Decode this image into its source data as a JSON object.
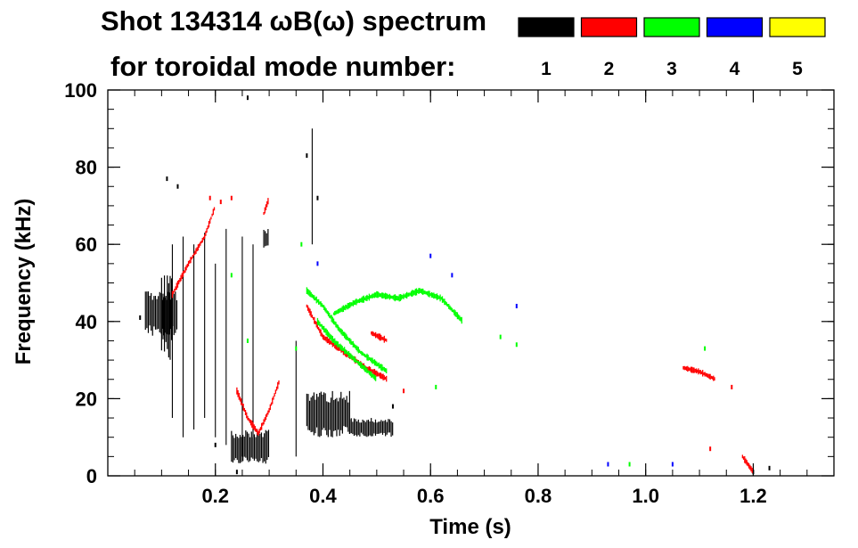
{
  "chart_data": {
    "type": "scatter",
    "title": "Shot 134314 ωB(ω) spectrum",
    "subtitle": "for toroidal mode number:",
    "xlabel": "Time (s)",
    "ylabel": "Frequency (kHz)",
    "xlim": [
      0.0,
      1.35
    ],
    "ylim": [
      0,
      100
    ],
    "x_ticks": [
      {
        "value": 0.2,
        "label": "0.2"
      },
      {
        "value": 0.4,
        "label": "0.4"
      },
      {
        "value": 0.6,
        "label": "0.6"
      },
      {
        "value": 0.8,
        "label": "0.8"
      },
      {
        "value": 1.0,
        "label": "1.0"
      },
      {
        "value": 1.2,
        "label": "1.2"
      }
    ],
    "y_ticks": [
      {
        "value": 0,
        "label": "0"
      },
      {
        "value": 20,
        "label": "20"
      },
      {
        "value": 40,
        "label": "40"
      },
      {
        "value": 60,
        "label": "60"
      },
      {
        "value": 80,
        "label": "80"
      },
      {
        "value": 100,
        "label": "100"
      }
    ],
    "x_minor_step": 0.05,
    "y_minor_step": 5,
    "grid": false,
    "legend_position": "top-right",
    "legend": [
      {
        "label": "1",
        "color": "#000000"
      },
      {
        "label": "2",
        "color": "#ff0000"
      },
      {
        "label": "3",
        "color": "#00ff00"
      },
      {
        "label": "4",
        "color": "#0000ff"
      },
      {
        "label": "5",
        "color": "#ffff00"
      }
    ],
    "series": [
      {
        "mode": "1",
        "color": "#000000",
        "bands": [
          {
            "x": [
              0.07,
              0.13
            ],
            "y": [
              36,
              48
            ],
            "width": 0.5
          },
          {
            "x": [
              0.1,
              0.12
            ],
            "y": [
              30,
              52
            ],
            "width": 0.5
          },
          {
            "x": [
              0.23,
              0.3
            ],
            "y": [
              3,
              12
            ],
            "width": 0.5
          },
          {
            "x": [
              0.29,
              0.3
            ],
            "y": [
              59,
              64
            ],
            "width": 0.2
          },
          {
            "x": [
              0.37,
              0.45
            ],
            "y": [
              10,
              22
            ],
            "width": 0.6
          },
          {
            "x": [
              0.45,
              0.53
            ],
            "y": [
              10,
              15
            ],
            "width": 0.5
          }
        ],
        "stripes": [
          {
            "x": 0.12,
            "y": [
              15,
              60
            ]
          },
          {
            "x": 0.14,
            "y": [
              10,
              62
            ]
          },
          {
            "x": 0.16,
            "y": [
              12,
              60
            ]
          },
          {
            "x": 0.18,
            "y": [
              15,
              63
            ]
          },
          {
            "x": 0.2,
            "y": [
              10,
              55
            ]
          },
          {
            "x": 0.22,
            "y": [
              8,
              64
            ]
          },
          {
            "x": 0.25,
            "y": [
              5,
              62
            ]
          },
          {
            "x": 0.27,
            "y": [
              10,
              60
            ]
          },
          {
            "x": 0.35,
            "y": [
              5,
              35
            ]
          },
          {
            "x": 0.38,
            "y": [
              60,
              90
            ]
          }
        ],
        "points": [
          {
            "x": 0.06,
            "y": 41
          },
          {
            "x": 0.11,
            "y": 77
          },
          {
            "x": 0.13,
            "y": 75
          },
          {
            "x": 0.2,
            "y": 8
          },
          {
            "x": 0.24,
            "y": 1
          },
          {
            "x": 0.26,
            "y": 98
          },
          {
            "x": 0.37,
            "y": 83
          },
          {
            "x": 0.39,
            "y": 72
          },
          {
            "x": 0.53,
            "y": 18
          },
          {
            "x": 1.2,
            "y": 1
          },
          {
            "x": 1.23,
            "y": 2
          }
        ]
      },
      {
        "mode": "2",
        "color": "#ff0000",
        "tracks": [
          {
            "x": [
              0.12,
              0.15,
              0.18,
              0.2
            ],
            "y": [
              47,
              55,
              62,
              70
            ]
          },
          {
            "x": [
              0.24,
              0.26,
              0.28,
              0.3,
              0.32
            ],
            "y": [
              22,
              15,
              11,
              17,
              25
            ]
          },
          {
            "x": [
              0.29,
              0.3
            ],
            "y": [
              68,
              72
            ]
          },
          {
            "x": [
              0.37,
              0.4,
              0.44,
              0.48,
              0.52
            ],
            "y": [
              44,
              36,
              32,
              28,
              25
            ]
          },
          {
            "x": [
              0.49,
              0.52
            ],
            "y": [
              37,
              35
            ]
          },
          {
            "x": [
              1.07,
              1.1,
              1.13
            ],
            "y": [
              28,
              27,
              25
            ]
          },
          {
            "x": [
              1.18,
              1.2
            ],
            "y": [
              5,
              1
            ]
          }
        ],
        "points": [
          {
            "x": 0.19,
            "y": 72
          },
          {
            "x": 0.21,
            "y": 71
          },
          {
            "x": 0.23,
            "y": 72
          },
          {
            "x": 0.55,
            "y": 22
          },
          {
            "x": 1.16,
            "y": 23
          },
          {
            "x": 1.12,
            "y": 7
          }
        ]
      },
      {
        "mode": "3",
        "color": "#00ff00",
        "tracks": [
          {
            "x": [
              0.37,
              0.4,
              0.43,
              0.47,
              0.52
            ],
            "y": [
              48,
              44,
              38,
              32,
              27
            ]
          },
          {
            "x": [
              0.39,
              0.42,
              0.46,
              0.5
            ],
            "y": [
              40,
              35,
              30,
              25
            ]
          },
          {
            "x": [
              0.42,
              0.46,
              0.5,
              0.54,
              0.58,
              0.62,
              0.66
            ],
            "y": [
              42,
              45,
              47,
              46,
              48,
              46,
              40
            ]
          }
        ],
        "points": [
          {
            "x": 0.23,
            "y": 52
          },
          {
            "x": 0.26,
            "y": 35
          },
          {
            "x": 0.35,
            "y": 33
          },
          {
            "x": 0.36,
            "y": 60
          },
          {
            "x": 0.61,
            "y": 23
          },
          {
            "x": 0.73,
            "y": 36
          },
          {
            "x": 0.76,
            "y": 34
          },
          {
            "x": 0.97,
            "y": 3
          },
          {
            "x": 1.11,
            "y": 33
          }
        ]
      },
      {
        "mode": "4",
        "color": "#0000ff",
        "points": [
          {
            "x": 0.39,
            "y": 55
          },
          {
            "x": 0.6,
            "y": 57
          },
          {
            "x": 0.64,
            "y": 52
          },
          {
            "x": 0.76,
            "y": 44
          },
          {
            "x": 0.93,
            "y": 3
          },
          {
            "x": 1.05,
            "y": 3
          }
        ]
      },
      {
        "mode": "5",
        "color": "#ffff00",
        "points": []
      }
    ]
  }
}
